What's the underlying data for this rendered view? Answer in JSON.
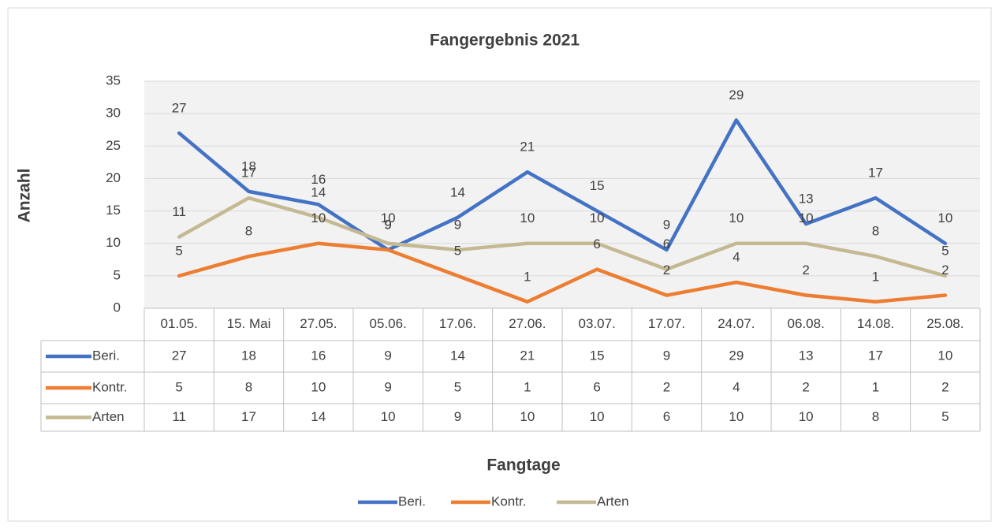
{
  "chart_data": {
    "type": "line",
    "title": "Fangergebnis 2021",
    "y_label": "Anzahl",
    "x_label": "Fangtage",
    "categories": [
      "01.05.",
      "15. Mai",
      "27.05.",
      "05.06.",
      "17.06.",
      "27.06.",
      "03.07.",
      "17.07.",
      "24.07.",
      "06.08.",
      "14.08.",
      "25.08."
    ],
    "series": [
      {
        "name": "Beri.",
        "color": "#4472c4",
        "values": [
          27,
          18,
          16,
          9,
          14,
          21,
          15,
          9,
          29,
          13,
          17,
          10
        ]
      },
      {
        "name": "Kontr.",
        "color": "#ed7d31",
        "values": [
          5,
          8,
          10,
          9,
          5,
          1,
          6,
          2,
          4,
          2,
          1,
          2
        ]
      },
      {
        "name": "Arten",
        "color": "#c4b993",
        "values": [
          11,
          17,
          14,
          10,
          9,
          10,
          10,
          6,
          10,
          10,
          8,
          5
        ]
      }
    ],
    "ylim": [
      0,
      35
    ],
    "yticks": [
      0,
      5,
      10,
      15,
      20,
      25,
      30,
      35
    ],
    "grid": true,
    "legend": "bottom"
  }
}
